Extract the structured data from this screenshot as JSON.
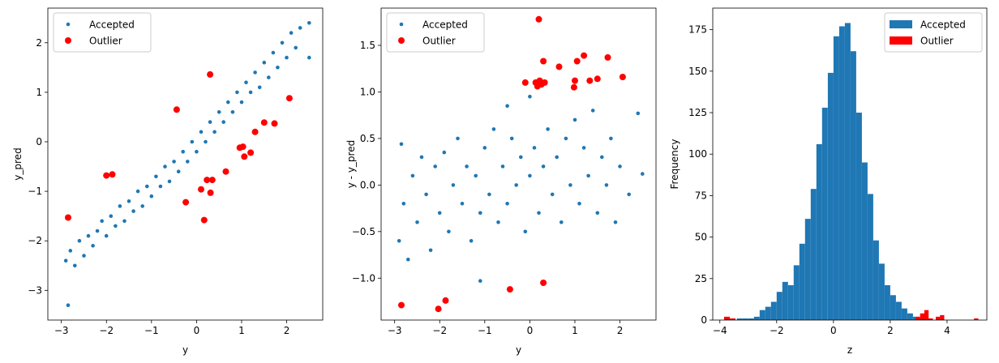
{
  "colors": {
    "accepted": "#1f77b4",
    "outlier": "#ff0000",
    "axis": "#000000",
    "legend_border": "#cccccc"
  },
  "chart_data": [
    {
      "type": "scatter",
      "xlabel": "y",
      "ylabel": "y_pred",
      "xlim": [
        -3.3,
        2.8
      ],
      "ylim": [
        -3.6,
        2.7
      ],
      "xticks": [
        -3,
        -2,
        -1,
        0,
        1,
        2
      ],
      "yticks": [
        -3,
        -2,
        -1,
        0,
        1,
        2
      ],
      "grid": false,
      "legend": "top-left",
      "series": [
        {
          "name": "Accepted",
          "marker": "small-dot",
          "points": [
            [
              -2.9,
              -2.4
            ],
            [
              -2.8,
              -2.2
            ],
            [
              -2.7,
              -2.5
            ],
            [
              -2.6,
              -2.0
            ],
            [
              -2.5,
              -2.3
            ],
            [
              -2.4,
              -1.9
            ],
            [
              -2.3,
              -2.1
            ],
            [
              -2.2,
              -1.8
            ],
            [
              -2.1,
              -1.6
            ],
            [
              -2.0,
              -1.9
            ],
            [
              -1.9,
              -1.5
            ],
            [
              -1.8,
              -1.7
            ],
            [
              -1.7,
              -1.3
            ],
            [
              -1.6,
              -1.6
            ],
            [
              -1.5,
              -1.2
            ],
            [
              -1.4,
              -1.4
            ],
            [
              -1.3,
              -1.0
            ],
            [
              -1.2,
              -1.3
            ],
            [
              -1.1,
              -0.9
            ],
            [
              -1.0,
              -1.1
            ],
            [
              -0.9,
              -0.7
            ],
            [
              -0.8,
              -0.9
            ],
            [
              -0.7,
              -0.5
            ],
            [
              -0.6,
              -0.8
            ],
            [
              -0.5,
              -0.4
            ],
            [
              -0.4,
              -0.6
            ],
            [
              -0.3,
              -0.2
            ],
            [
              -0.2,
              -0.4
            ],
            [
              -0.1,
              0.0
            ],
            [
              0.0,
              -0.2
            ],
            [
              0.1,
              0.2
            ],
            [
              0.2,
              0.0
            ],
            [
              0.3,
              0.4
            ],
            [
              0.4,
              0.2
            ],
            [
              0.5,
              0.6
            ],
            [
              0.6,
              0.4
            ],
            [
              0.7,
              0.8
            ],
            [
              0.8,
              0.6
            ],
            [
              0.9,
              1.0
            ],
            [
              1.0,
              0.8
            ],
            [
              1.1,
              1.2
            ],
            [
              1.2,
              1.0
            ],
            [
              1.3,
              1.4
            ],
            [
              1.4,
              1.1
            ],
            [
              1.5,
              1.6
            ],
            [
              1.6,
              1.3
            ],
            [
              1.7,
              1.8
            ],
            [
              1.8,
              1.5
            ],
            [
              1.9,
              2.0
            ],
            [
              2.0,
              1.7
            ],
            [
              2.1,
              2.2
            ],
            [
              2.2,
              1.9
            ],
            [
              2.3,
              2.3
            ],
            [
              2.5,
              2.4
            ],
            [
              2.5,
              1.7
            ],
            [
              -2.85,
              -3.3
            ]
          ]
        },
        {
          "name": "Outlier",
          "marker": "large-dot",
          "points": [
            [
              -2.85,
              -1.53
            ],
            [
              -2.0,
              -0.68
            ],
            [
              -1.87,
              -0.66
            ],
            [
              -0.44,
              0.65
            ],
            [
              -0.24,
              -1.22
            ],
            [
              0.1,
              -0.96
            ],
            [
              0.17,
              -1.58
            ],
            [
              0.23,
              -0.77
            ],
            [
              0.3,
              1.36
            ],
            [
              0.31,
              -1.03
            ],
            [
              0.35,
              -0.77
            ],
            [
              0.65,
              -0.6
            ],
            [
              0.96,
              -0.12
            ],
            [
              1.03,
              -0.1
            ],
            [
              1.06,
              -0.3
            ],
            [
              1.2,
              -0.22
            ],
            [
              1.3,
              0.2
            ],
            [
              1.5,
              0.39
            ],
            [
              1.73,
              0.37
            ],
            [
              2.06,
              0.88
            ]
          ]
        }
      ]
    },
    {
      "type": "scatter",
      "xlabel": "y",
      "ylabel": "y - y_pred",
      "xlim": [
        -3.3,
        2.8
      ],
      "ylim": [
        -1.45,
        1.9
      ],
      "xticks": [
        -3,
        -2,
        -1,
        0,
        1,
        2
      ],
      "yticks": [
        -1.0,
        -0.5,
        0.0,
        0.5,
        1.0,
        1.5
      ],
      "grid": false,
      "legend": "top-left",
      "series": [
        {
          "name": "Accepted",
          "marker": "small-dot",
          "points": [
            [
              -2.9,
              -0.6
            ],
            [
              -2.85,
              0.44
            ],
            [
              -2.8,
              -0.2
            ],
            [
              -2.7,
              -0.8
            ],
            [
              -2.6,
              0.1
            ],
            [
              -2.5,
              -0.4
            ],
            [
              -2.4,
              0.3
            ],
            [
              -2.3,
              -0.1
            ],
            [
              -2.2,
              -0.7
            ],
            [
              -2.1,
              0.2
            ],
            [
              -2.0,
              -0.3
            ],
            [
              -1.9,
              0.35
            ],
            [
              -1.8,
              -0.5
            ],
            [
              -1.7,
              0.0
            ],
            [
              -1.6,
              0.5
            ],
            [
              -1.5,
              -0.2
            ],
            [
              -1.4,
              0.2
            ],
            [
              -1.3,
              -0.6
            ],
            [
              -1.2,
              0.1
            ],
            [
              -1.1,
              -0.3
            ],
            [
              -1.0,
              0.4
            ],
            [
              -0.9,
              -0.1
            ],
            [
              -0.8,
              0.6
            ],
            [
              -0.7,
              -0.4
            ],
            [
              -0.6,
              0.2
            ],
            [
              -0.5,
              -0.2
            ],
            [
              -0.4,
              0.5
            ],
            [
              -0.3,
              0.0
            ],
            [
              -0.2,
              0.3
            ],
            [
              -0.1,
              -0.5
            ],
            [
              0.0,
              0.1
            ],
            [
              0.1,
              0.4
            ],
            [
              0.2,
              -0.3
            ],
            [
              0.3,
              0.2
            ],
            [
              0.4,
              0.6
            ],
            [
              0.5,
              -0.1
            ],
            [
              0.6,
              0.3
            ],
            [
              0.7,
              -0.4
            ],
            [
              0.8,
              0.5
            ],
            [
              0.9,
              0.0
            ],
            [
              1.0,
              0.7
            ],
            [
              1.1,
              -0.2
            ],
            [
              1.2,
              0.4
            ],
            [
              1.3,
              0.1
            ],
            [
              1.4,
              0.8
            ],
            [
              1.5,
              -0.3
            ],
            [
              1.6,
              0.3
            ],
            [
              1.7,
              0.0
            ],
            [
              1.8,
              0.5
            ],
            [
              1.9,
              -0.4
            ],
            [
              2.0,
              0.2
            ],
            [
              2.2,
              -0.1
            ],
            [
              2.4,
              0.77
            ],
            [
              2.5,
              0.12
            ],
            [
              -1.1,
              -1.03
            ],
            [
              0.0,
              0.95
            ],
            [
              -0.5,
              0.85
            ]
          ]
        },
        {
          "name": "Outlier",
          "marker": "large-dot",
          "points": [
            [
              -2.85,
              -1.29
            ],
            [
              -2.03,
              -1.33
            ],
            [
              -1.87,
              -1.24
            ],
            [
              -0.44,
              -1.12
            ],
            [
              -0.1,
              1.1
            ],
            [
              0.13,
              1.1
            ],
            [
              0.17,
              1.06
            ],
            [
              0.2,
              1.78
            ],
            [
              0.22,
              1.12
            ],
            [
              0.26,
              1.08
            ],
            [
              0.3,
              1.33
            ],
            [
              0.33,
              1.1
            ],
            [
              0.3,
              -1.05
            ],
            [
              0.65,
              1.27
            ],
            [
              0.98,
              1.05
            ],
            [
              1.0,
              1.12
            ],
            [
              1.05,
              1.33
            ],
            [
              1.2,
              1.39
            ],
            [
              1.33,
              1.12
            ],
            [
              1.5,
              1.14
            ],
            [
              1.73,
              1.37
            ],
            [
              2.06,
              1.16
            ]
          ]
        }
      ]
    },
    {
      "type": "histogram",
      "xlabel": "z",
      "ylabel": "Frequency",
      "xlim": [
        -4.25,
        5.4
      ],
      "ylim": [
        0,
        188
      ],
      "xticks": [
        -4,
        -2,
        0,
        2,
        4
      ],
      "yticks": [
        0,
        25,
        50,
        75,
        100,
        125,
        150,
        175
      ],
      "grid": false,
      "legend": "top-right",
      "series": [
        {
          "name": "Accepted",
          "bin_width": 0.2,
          "bin_start": -3.8,
          "values": [
            0,
            0,
            1,
            1,
            1,
            2,
            6,
            8,
            11,
            17,
            23,
            21,
            33,
            46,
            61,
            79,
            106,
            128,
            149,
            171,
            177,
            179,
            162,
            125,
            95,
            76,
            48,
            34,
            21,
            15,
            11,
            7,
            4,
            2,
            1,
            1
          ]
        },
        {
          "name": "Outlier",
          "bins": [
            {
              "x0": -3.85,
              "x1": -3.65,
              "value": 2
            },
            {
              "x0": -3.65,
              "x1": -3.45,
              "value": 1
            },
            {
              "x0": 2.9,
              "x1": 3.05,
              "value": 2
            },
            {
              "x0": 3.05,
              "x1": 3.2,
              "value": 4
            },
            {
              "x0": 3.2,
              "x1": 3.35,
              "value": 6
            },
            {
              "x0": 3.35,
              "x1": 3.5,
              "value": 1
            },
            {
              "x0": 3.6,
              "x1": 3.75,
              "value": 2
            },
            {
              "x0": 3.75,
              "x1": 3.9,
              "value": 3
            },
            {
              "x0": 4.95,
              "x1": 5.1,
              "value": 1
            }
          ]
        }
      ]
    }
  ]
}
